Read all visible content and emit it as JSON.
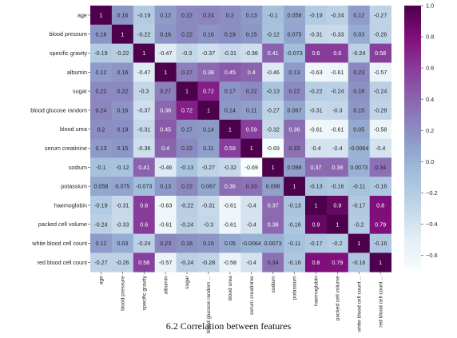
{
  "caption": "6.2 Correlation between features",
  "chart_data": {
    "type": "heatmap",
    "labels": [
      "age",
      "blood pressure",
      "specific gravity",
      "albumin",
      "sugar",
      "blood glucose random",
      "blood urea",
      "serum creatinine",
      "sodium",
      "potassium",
      "haemoglobin",
      "packed cell volume",
      "white blood cell count",
      "red blood cell count"
    ],
    "x_tick_labels": [
      "age",
      "blood pressure",
      "specific gravity",
      "albumin",
      "sugar",
      "blood glucose random ...",
      "blood urea",
      "serum creatinine",
      "sodium",
      "potassium",
      "haemoglobin",
      "packed cell volume",
      "white blood cell count ...",
      "red blood cell count ..."
    ],
    "matrix": [
      [
        1,
        0.16,
        -0.19,
        0.12,
        0.22,
        0.24,
        0.2,
        0.13,
        -0.1,
        0.058,
        -0.19,
        -0.24,
        0.12,
        -0.27
      ],
      [
        0.16,
        1,
        -0.22,
        0.16,
        0.22,
        0.16,
        0.19,
        0.15,
        -0.12,
        0.075,
        -0.31,
        -0.33,
        0.03,
        -0.26
      ],
      [
        -0.19,
        -0.22,
        1,
        -0.47,
        -0.3,
        -0.37,
        -0.31,
        -0.36,
        0.41,
        -0.073,
        0.6,
        0.6,
        -0.24,
        0.58
      ],
      [
        0.12,
        0.16,
        -0.47,
        1,
        0.27,
        0.38,
        0.45,
        0.4,
        -0.46,
        0.13,
        -0.63,
        -0.61,
        0.23,
        -0.57
      ],
      [
        0.22,
        0.22,
        -0.3,
        0.27,
        1,
        0.72,
        0.17,
        0.22,
        -0.13,
        0.22,
        -0.22,
        -0.24,
        0.18,
        -0.24
      ],
      [
        0.24,
        0.16,
        -0.37,
        0.38,
        0.72,
        1,
        0.14,
        0.11,
        -0.27,
        0.067,
        -0.31,
        -0.3,
        0.15,
        -0.28
      ],
      [
        0.2,
        0.19,
        -0.31,
        0.45,
        0.17,
        0.14,
        1,
        0.59,
        -0.32,
        0.36,
        -0.61,
        -0.61,
        0.05,
        -0.58
      ],
      [
        0.13,
        0.15,
        -0.36,
        0.4,
        0.22,
        0.11,
        0.59,
        1,
        -0.69,
        0.33,
        -0.4,
        -0.4,
        -0.0064,
        -0.4
      ],
      [
        -0.1,
        -0.12,
        0.41,
        -0.46,
        -0.13,
        -0.27,
        -0.32,
        -0.69,
        1,
        0.098,
        0.37,
        0.38,
        0.0073,
        0.34
      ],
      [
        0.058,
        0.075,
        -0.073,
        0.13,
        0.22,
        0.067,
        0.36,
        0.33,
        0.098,
        1,
        -0.13,
        -0.16,
        -0.11,
        -0.16
      ],
      [
        -0.19,
        -0.31,
        0.6,
        -0.63,
        -0.22,
        -0.31,
        -0.61,
        -0.4,
        0.37,
        -0.13,
        1,
        0.9,
        -0.17,
        0.8
      ],
      [
        -0.24,
        -0.33,
        0.6,
        -0.61,
        -0.24,
        -0.3,
        -0.61,
        -0.4,
        0.38,
        -0.16,
        0.9,
        1,
        -0.2,
        0.79
      ],
      [
        0.12,
        0.03,
        -0.24,
        0.23,
        0.18,
        0.15,
        0.05,
        -0.0064,
        0.0073,
        -0.11,
        -0.17,
        -0.2,
        1,
        -0.16
      ],
      [
        -0.27,
        -0.26,
        0.58,
        -0.57,
        -0.24,
        -0.28,
        -0.58,
        -0.4,
        0.34,
        -0.16,
        0.8,
        0.79,
        -0.16,
        1
      ]
    ],
    "colormap": "BuPu",
    "vmin": -0.69,
    "vmax": 1.0,
    "colorbar_ticks": [
      1.0,
      0.8,
      0.6,
      0.4,
      0.2,
      0.0,
      -0.2,
      -0.4,
      -0.6
    ],
    "colorbar_tick_labels": [
      "1.0",
      "0.8",
      "0.6",
      "0.4",
      "0.2",
      "0.0",
      "−0.2",
      "−0.4",
      "−0.6"
    ],
    "legend": "colorbar-right"
  }
}
